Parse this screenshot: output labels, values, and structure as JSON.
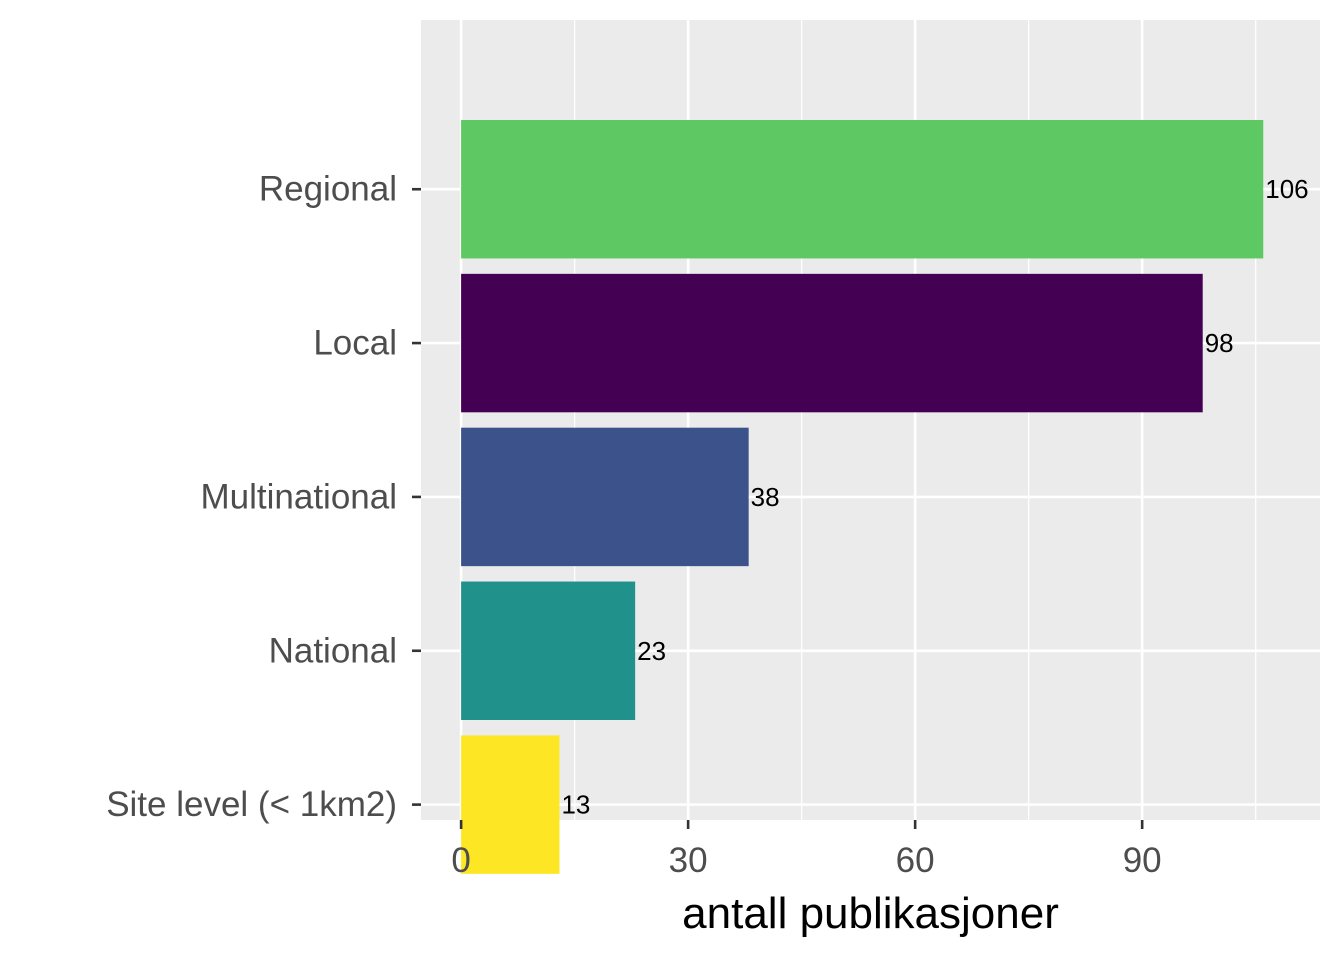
{
  "chart_data": {
    "type": "bar",
    "orientation": "horizontal",
    "categories": [
      "Regional",
      "Local",
      "Multinational",
      "National",
      "Site level (< 1km2)"
    ],
    "values": [
      106,
      98,
      38,
      23,
      13
    ],
    "bar_colors": [
      "#5ec962",
      "#440154",
      "#3b528b",
      "#21918c",
      "#fde725"
    ],
    "data_labels": [
      "106",
      "98",
      "38",
      "23",
      "13"
    ],
    "xlabel": "antall publikasjoner",
    "ylabel": "",
    "xlim": [
      -5.3,
      113.5
    ],
    "x_ticks": [
      0,
      30,
      60,
      90
    ],
    "x_tick_labels": [
      "0",
      "30",
      "60",
      "90"
    ],
    "x_minor_ticks": [
      15,
      45,
      75,
      105
    ],
    "grid": true,
    "legend": "none",
    "panel_background": "#ebebeb",
    "grid_color": "#ffffff",
    "axis_text_color": "#4d4d4d"
  }
}
